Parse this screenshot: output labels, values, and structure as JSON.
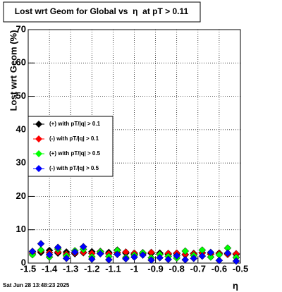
{
  "chart_data": {
    "type": "scatter",
    "title": "Lost wrt Geom for Global vs  η  at pT > 0.11",
    "x_label": "η",
    "y_label": "Lost wrt Geom (%)",
    "timestamp": "Sat Jun 28 13:48:23 2025",
    "xlim": [
      -1.5,
      -0.5
    ],
    "xticks": [
      -1.5,
      -1.4,
      -1.3,
      -1.2,
      -1.1,
      -1,
      -0.9,
      -0.8,
      -0.7,
      -0.6,
      -0.5
    ],
    "ylim": [
      0,
      70
    ],
    "yticks": [
      0,
      10,
      20,
      30,
      40,
      50,
      60,
      70
    ],
    "grid": true,
    "legend_position": "left",
    "x": [
      -1.48,
      -1.44,
      -1.4,
      -1.36,
      -1.32,
      -1.28,
      -1.24,
      -1.2,
      -1.16,
      -1.12,
      -1.08,
      -1.04,
      -1,
      -0.96,
      -0.92,
      -0.88,
      -0.84,
      -0.8,
      -0.76,
      -0.72,
      -0.68,
      -0.64,
      -0.6,
      -0.56,
      -0.52
    ],
    "series": [
      {
        "name": "(+) with pT/|q| > 0.1",
        "color": "#000000",
        "values": [
          3.5,
          3.2,
          3.8,
          3.0,
          3.3,
          2.8,
          3.1,
          3.4,
          2.9,
          3.2,
          3.9,
          3.0,
          2.7,
          3.1,
          2.9,
          3.0,
          2.6,
          2.8,
          2.5,
          2.9,
          3.1,
          2.7,
          3.0,
          2.8,
          2.6
        ]
      },
      {
        "name": "(-) with pT/|q| > 0.1",
        "color": "#ff0000",
        "values": [
          3.0,
          3.6,
          3.1,
          3.3,
          2.7,
          3.0,
          3.2,
          2.9,
          3.5,
          2.8,
          3.1,
          3.3,
          3.0,
          2.8,
          3.2,
          2.7,
          2.9,
          3.0,
          2.6,
          2.8,
          3.0,
          2.7,
          2.9,
          2.6,
          2.8
        ]
      },
      {
        "name": "(+) with pT/|q| > 0.5",
        "color": "#00ff00",
        "values": [
          2.5,
          3.9,
          1.8,
          4.2,
          2.2,
          3.7,
          4.1,
          1.9,
          3.4,
          2.0,
          3.8,
          1.7,
          2.4,
          3.1,
          1.6,
          2.6,
          2.0,
          1.5,
          3.6,
          2.3,
          3.9,
          1.8,
          2.5,
          4.5,
          1.7
        ]
      },
      {
        "name": "(-) with pT/|q| > 0.5",
        "color": "#0000ff",
        "values": [
          3.5,
          5.8,
          2.5,
          4.7,
          1.4,
          3.3,
          4.9,
          1.2,
          2.8,
          1.0,
          2.6,
          1.3,
          1.8,
          2.4,
          0.9,
          1.6,
          1.1,
          2.2,
          1.0,
          1.4,
          2.1,
          3.2,
          0.8,
          3.0,
          0.6
        ]
      }
    ]
  }
}
